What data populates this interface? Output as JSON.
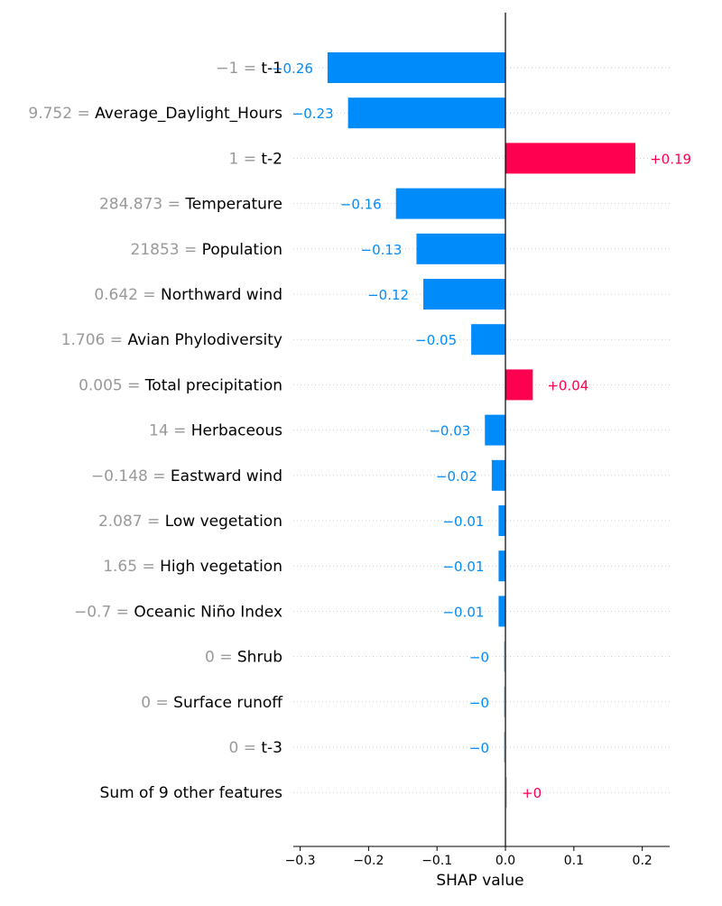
{
  "chart_data": {
    "type": "bar",
    "orientation": "horizontal",
    "xlabel": "SHAP value",
    "xlim": [
      -0.31,
      0.24
    ],
    "xticks": [
      {
        "value": -0.3,
        "label": "−0.3"
      },
      {
        "value": -0.2,
        "label": "−0.2"
      },
      {
        "value": -0.1,
        "label": "−0.1"
      },
      {
        "value": 0.0,
        "label": "0.0"
      },
      {
        "value": 0.1,
        "label": "0.1"
      },
      {
        "value": 0.2,
        "label": "0.2"
      }
    ],
    "grid": "dotted horizontal per feature row",
    "colors": {
      "positive": "#ff0051",
      "negative": "#008bfb",
      "feature_value": "#999999",
      "feature_name": "#000000",
      "axis": "#000000",
      "grid": "#cccccc"
    },
    "features": [
      {
        "feature_value": "−1 =",
        "name": "t-1",
        "shap": -0.26,
        "label": "−0.26"
      },
      {
        "feature_value": "9.752 =",
        "name": "Average_Daylight_Hours",
        "shap": -0.23,
        "label": "−0.23"
      },
      {
        "feature_value": "1 =",
        "name": "t-2",
        "shap": 0.19,
        "label": "+0.19"
      },
      {
        "feature_value": "284.873 =",
        "name": "Temperature",
        "shap": -0.16,
        "label": "−0.16"
      },
      {
        "feature_value": "21853 =",
        "name": "Population",
        "shap": -0.13,
        "label": "−0.13"
      },
      {
        "feature_value": "0.642 =",
        "name": "Northward wind",
        "shap": -0.12,
        "label": "−0.12"
      },
      {
        "feature_value": "1.706 =",
        "name": "Avian Phylodiversity",
        "shap": -0.05,
        "label": "−0.05"
      },
      {
        "feature_value": "0.005 =",
        "name": "Total precipitation",
        "shap": 0.04,
        "label": "+0.04"
      },
      {
        "feature_value": "14 =",
        "name": "Herbaceous",
        "shap": -0.03,
        "label": "−0.03"
      },
      {
        "feature_value": "−0.148 =",
        "name": "Eastward wind",
        "shap": -0.02,
        "label": "−0.02"
      },
      {
        "feature_value": "2.087 =",
        "name": "Low vegetation",
        "shap": -0.01,
        "label": "−0.01"
      },
      {
        "feature_value": "1.65 =",
        "name": "High vegetation",
        "shap": -0.01,
        "label": "−0.01"
      },
      {
        "feature_value": "−0.7 =",
        "name": "Oceanic Niño Index",
        "shap": -0.01,
        "label": "−0.01"
      },
      {
        "feature_value": "0 =",
        "name": "Shrub",
        "shap": -0.002,
        "label": "−0"
      },
      {
        "feature_value": "0 =",
        "name": "Surface runoff",
        "shap": -0.001,
        "label": "−0"
      },
      {
        "feature_value": "0 =",
        "name": "t-3",
        "shap": -0.0005,
        "label": "−0"
      },
      {
        "feature_value": "",
        "name": "Sum of 9 other features",
        "shap": 0.0005,
        "label": "+0"
      }
    ]
  }
}
